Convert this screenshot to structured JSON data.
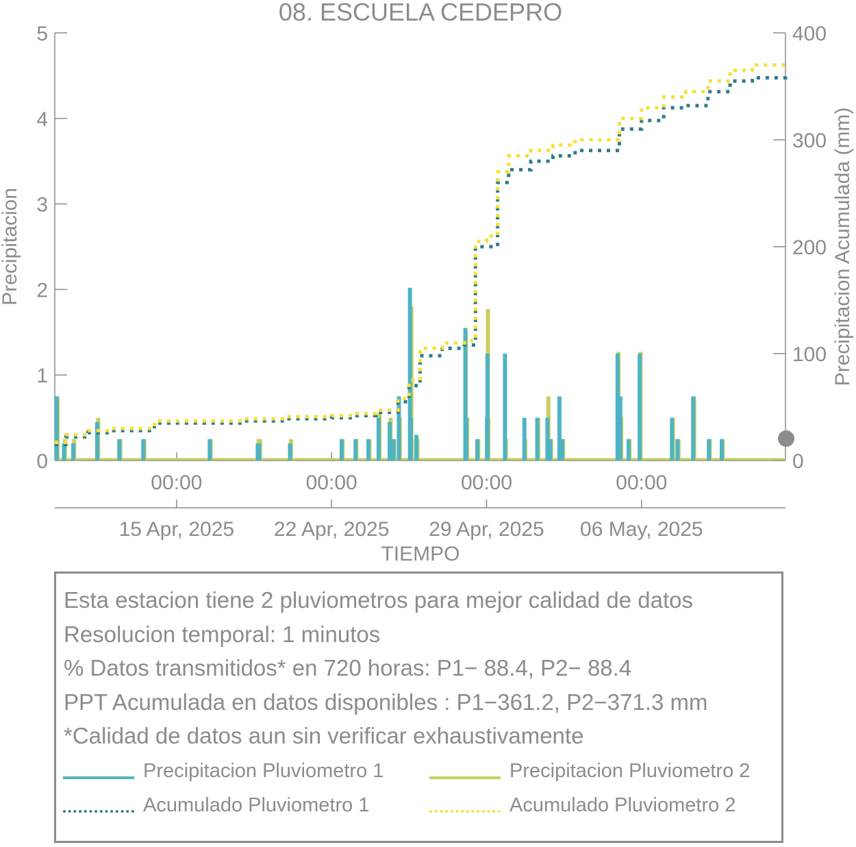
{
  "chart_data": {
    "type": "bar",
    "title": "08. ESCUELA CEDEPRO",
    "xlabel": "TIEMPO",
    "ylabel": "Precipitacion",
    "y2label": "Precipitacion Acumulada (mm)",
    "x_range": [
      "2025-04-09T12:00",
      "2025-05-12T12:00"
    ],
    "ylim": [
      0,
      5
    ],
    "y2lim": [
      0,
      400
    ],
    "y_ticks": [
      "0",
      "1",
      "2",
      "3",
      "4",
      "5"
    ],
    "y2_ticks": [
      "0",
      "100",
      "200",
      "300",
      "400"
    ],
    "x_ticks": [
      {
        "x": "2025-04-15T00:00",
        "label": "00:00",
        "date_label": "15 Apr, 2025"
      },
      {
        "x": "2025-04-22T00:00",
        "label": "00:00",
        "date_label": "22 Apr, 2025"
      },
      {
        "x": "2025-04-29T00:00",
        "label": "00:00",
        "date_label": "29 Apr, 2025"
      },
      {
        "x": "2025-05-06T00:00",
        "label": "00:00",
        "date_label": "06 May, 2025"
      }
    ],
    "grid": false,
    "series": [
      {
        "name": "Precipitacion Pluviometro 1",
        "type": "bar",
        "axis": "left",
        "color": "#4fb3c4",
        "x": [
          "2025-04-09T14:00",
          "2025-04-09T22:00",
          "2025-04-10T08:00",
          "2025-04-11T10:00",
          "2025-04-12T10:00",
          "2025-04-13T12:00",
          "2025-04-16T12:00",
          "2025-04-18T16:00",
          "2025-04-18T17:30",
          "2025-04-20T03:00",
          "2025-04-22T11:00",
          "2025-04-23T02:00",
          "2025-04-23T16:00",
          "2025-04-24T03:00",
          "2025-04-24T15:00",
          "2025-04-24T19:00",
          "2025-04-25T01:00",
          "2025-04-25T13:00",
          "2025-04-25T14:00",
          "2025-04-25T20:00",
          "2025-04-28T01:00",
          "2025-04-28T02:00",
          "2025-04-28T14:00",
          "2025-04-29T00:30",
          "2025-04-29T01:00",
          "2025-04-29T20:00",
          "2025-04-30T17:00",
          "2025-05-01T07:00",
          "2025-05-01T18:00",
          "2025-05-01T21:00",
          "2025-05-02T07:00",
          "2025-05-02T10:00",
          "2025-05-04T22:00",
          "2025-05-05T01:00",
          "2025-05-05T10:00",
          "2025-05-05T22:00",
          "2025-05-07T09:00",
          "2025-05-07T15:00",
          "2025-05-08T08:00",
          "2025-05-09T01:00",
          "2025-05-09T15:00"
        ],
        "values": [
          0.75,
          0.2,
          0.2,
          0.45,
          0.25,
          0.25,
          0.25,
          0.2,
          0.2,
          0.2,
          0.25,
          0.25,
          0.25,
          0.5,
          0.45,
          0.25,
          0.75,
          2.02,
          0.5,
          0.3,
          1.55,
          0.5,
          0.25,
          0.5,
          1.25,
          1.25,
          0.5,
          0.5,
          0.5,
          0.25,
          0.75,
          0.25,
          1.25,
          0.75,
          0.25,
          1.25,
          0.5,
          0.25,
          0.75,
          0.25,
          0.25
        ]
      },
      {
        "name": "Precipitacion Pluviometro 2",
        "type": "bar",
        "axis": "left",
        "color": "#c8cf5e",
        "x": [
          "2025-04-09T15:00",
          "2025-04-09T23:00",
          "2025-04-10T09:00",
          "2025-04-11T11:00",
          "2025-04-12T11:00",
          "2025-04-13T13:00",
          "2025-04-16T13:00",
          "2025-04-18T17:00",
          "2025-04-18T18:30",
          "2025-04-20T04:00",
          "2025-04-22T12:00",
          "2025-04-23T03:00",
          "2025-04-23T17:00",
          "2025-04-24T04:00",
          "2025-04-24T16:00",
          "2025-04-24T20:00",
          "2025-04-25T02:00",
          "2025-04-25T14:30",
          "2025-04-25T15:00",
          "2025-04-25T21:00",
          "2025-04-28T01:30",
          "2025-04-28T03:00",
          "2025-04-28T15:00",
          "2025-04-29T01:30",
          "2025-04-29T02:00",
          "2025-04-29T21:00",
          "2025-04-30T18:00",
          "2025-05-01T08:00",
          "2025-05-01T19:00",
          "2025-05-01T22:00",
          "2025-05-02T08:00",
          "2025-05-02T11:00",
          "2025-05-04T23:00",
          "2025-05-05T02:00",
          "2025-05-05T11:00",
          "2025-05-05T23:00",
          "2025-05-07T10:00",
          "2025-05-07T16:00",
          "2025-05-08T09:00",
          "2025-05-09T02:00",
          "2025-05-09T16:00"
        ],
        "values": [
          0.75,
          0.25,
          0.25,
          0.5,
          0.25,
          0.25,
          0.25,
          0.25,
          0.25,
          0.25,
          0.25,
          0.25,
          0.25,
          0.55,
          0.5,
          0.25,
          0.5,
          1.8,
          0.25,
          0.25,
          1.5,
          0.5,
          0.25,
          1.77,
          0.5,
          0.25,
          0.25,
          0.5,
          0.75,
          0.25,
          0.25,
          0.25,
          1.27,
          0.5,
          0.25,
          1.27,
          0.5,
          0.25,
          0.75,
          0.25,
          0.25
        ]
      },
      {
        "name": "Acumulado Pluviometro 1",
        "type": "line",
        "axis": "right",
        "style": "dotted",
        "color": "#2e7d8e",
        "x": [
          "2025-04-09T12:00",
          "2025-04-10T00:00",
          "2025-04-11T00:00",
          "2025-04-12T00:00",
          "2025-04-13T00:00",
          "2025-04-14T00:00",
          "2025-04-16T00:00",
          "2025-04-18T00:00",
          "2025-04-20T00:00",
          "2025-04-22T00:00",
          "2025-04-23T00:00",
          "2025-04-24T00:00",
          "2025-04-25T00:00",
          "2025-04-25T12:00",
          "2025-04-26T00:00",
          "2025-04-27T00:00",
          "2025-04-28T00:00",
          "2025-04-28T12:00",
          "2025-04-29T00:00",
          "2025-04-29T12:00",
          "2025-04-30T00:00",
          "2025-05-01T00:00",
          "2025-05-02T00:00",
          "2025-05-03T00:00",
          "2025-05-04T00:00",
          "2025-05-05T00:00",
          "2025-05-06T00:00",
          "2025-05-07T00:00",
          "2025-05-08T00:00",
          "2025-05-09T00:00",
          "2025-05-10T00:00",
          "2025-05-11T00:00",
          "2025-05-12T12:00"
        ],
        "values": [
          15,
          22,
          26,
          28,
          28,
          35,
          35,
          37,
          39,
          40,
          42,
          45,
          55,
          70,
          98,
          105,
          108,
          200,
          200,
          260,
          272,
          280,
          285,
          290,
          290,
          310,
          318,
          330,
          332,
          345,
          355,
          358,
          360
        ]
      },
      {
        "name": "Acumulado Pluviometro 2",
        "type": "line",
        "axis": "right",
        "style": "dotted",
        "color": "#f5e03a",
        "x": [
          "2025-04-09T12:00",
          "2025-04-10T00:00",
          "2025-04-11T00:00",
          "2025-04-12T00:00",
          "2025-04-13T00:00",
          "2025-04-14T00:00",
          "2025-04-16T00:00",
          "2025-04-18T00:00",
          "2025-04-20T00:00",
          "2025-04-22T00:00",
          "2025-04-23T00:00",
          "2025-04-24T00:00",
          "2025-04-25T00:00",
          "2025-04-25T12:00",
          "2025-04-26T00:00",
          "2025-04-27T00:00",
          "2025-04-28T00:00",
          "2025-04-28T12:00",
          "2025-04-29T00:00",
          "2025-04-29T12:00",
          "2025-04-30T00:00",
          "2025-05-01T00:00",
          "2025-05-02T00:00",
          "2025-05-03T00:00",
          "2025-05-04T00:00",
          "2025-05-05T00:00",
          "2025-05-06T00:00",
          "2025-05-07T00:00",
          "2025-05-08T00:00",
          "2025-05-09T00:00",
          "2025-05-10T00:00",
          "2025-05-11T00:00",
          "2025-05-12T12:00"
        ],
        "values": [
          17,
          24,
          28,
          30,
          30,
          37,
          37,
          39,
          41,
          42,
          44,
          47,
          58,
          75,
          105,
          110,
          112,
          205,
          210,
          270,
          285,
          290,
          295,
          300,
          300,
          320,
          330,
          340,
          345,
          355,
          365,
          370,
          371
        ]
      }
    ]
  },
  "info": {
    "lines": [
      "Esta estacion tiene 2 pluviometros para mejor calidad de datos",
      "Resolucion temporal: 1 minutos",
      "% Datos transmitidos* en 720 horas: P1− 88.4, P2− 88.4",
      "PPT Acumulada en datos disponibles : P1−361.2, P2−371.3 mm",
      "*Calidad de datos aun sin verificar exhaustivamente"
    ],
    "legend": [
      {
        "label": "Precipitacion Pluviometro 1",
        "color": "#4fb3c4",
        "style": "solid"
      },
      {
        "label": "Precipitacion Pluviometro 2",
        "color": "#c8cf5e",
        "style": "solid"
      },
      {
        "label": "Acumulado Pluviometro 1",
        "color": "#2e7d8e",
        "style": "dotted"
      },
      {
        "label": "Acumulado Pluviometro 2",
        "color": "#f5e03a",
        "style": "dotted"
      }
    ]
  }
}
